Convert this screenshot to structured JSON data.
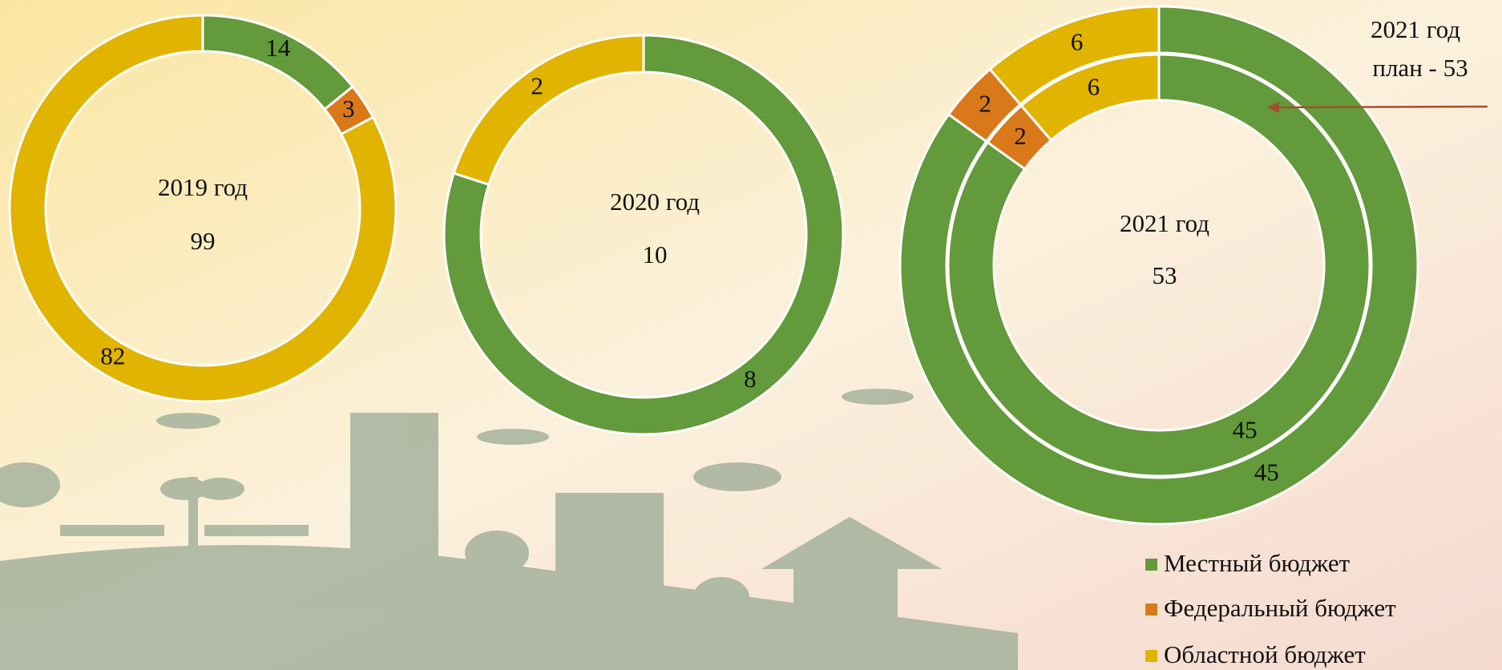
{
  "chart_data": [
    {
      "type": "pie",
      "center_title": "2019 год",
      "total": 99,
      "categories": [
        "Местный бюджет",
        "Федеральный бюджет",
        "Областной бюджет"
      ],
      "colors": [
        "#639a3b",
        "#d9791a",
        "#e0b400"
      ],
      "rings": [
        {
          "values": [
            14,
            3,
            82
          ]
        }
      ]
    },
    {
      "type": "pie",
      "center_title": "2020 год",
      "total": 10,
      "categories": [
        "Местный бюджет",
        "Областной бюджет"
      ],
      "colors": [
        "#639a3b",
        "#e0b400"
      ],
      "rings": [
        {
          "values": [
            8,
            2
          ]
        }
      ]
    },
    {
      "type": "pie",
      "center_title": "2021 год",
      "total": 53,
      "categories": [
        "Местный бюджет",
        "Федеральный бюджет",
        "Областной бюджет"
      ],
      "colors": [
        "#639a3b",
        "#d9791a",
        "#e0b400"
      ],
      "rings": [
        {
          "values": [
            45,
            2,
            6
          ]
        },
        {
          "values": [
            45,
            2,
            6
          ]
        }
      ],
      "annotation": [
        "2021 год",
        "план - 53"
      ]
    }
  ]
}
